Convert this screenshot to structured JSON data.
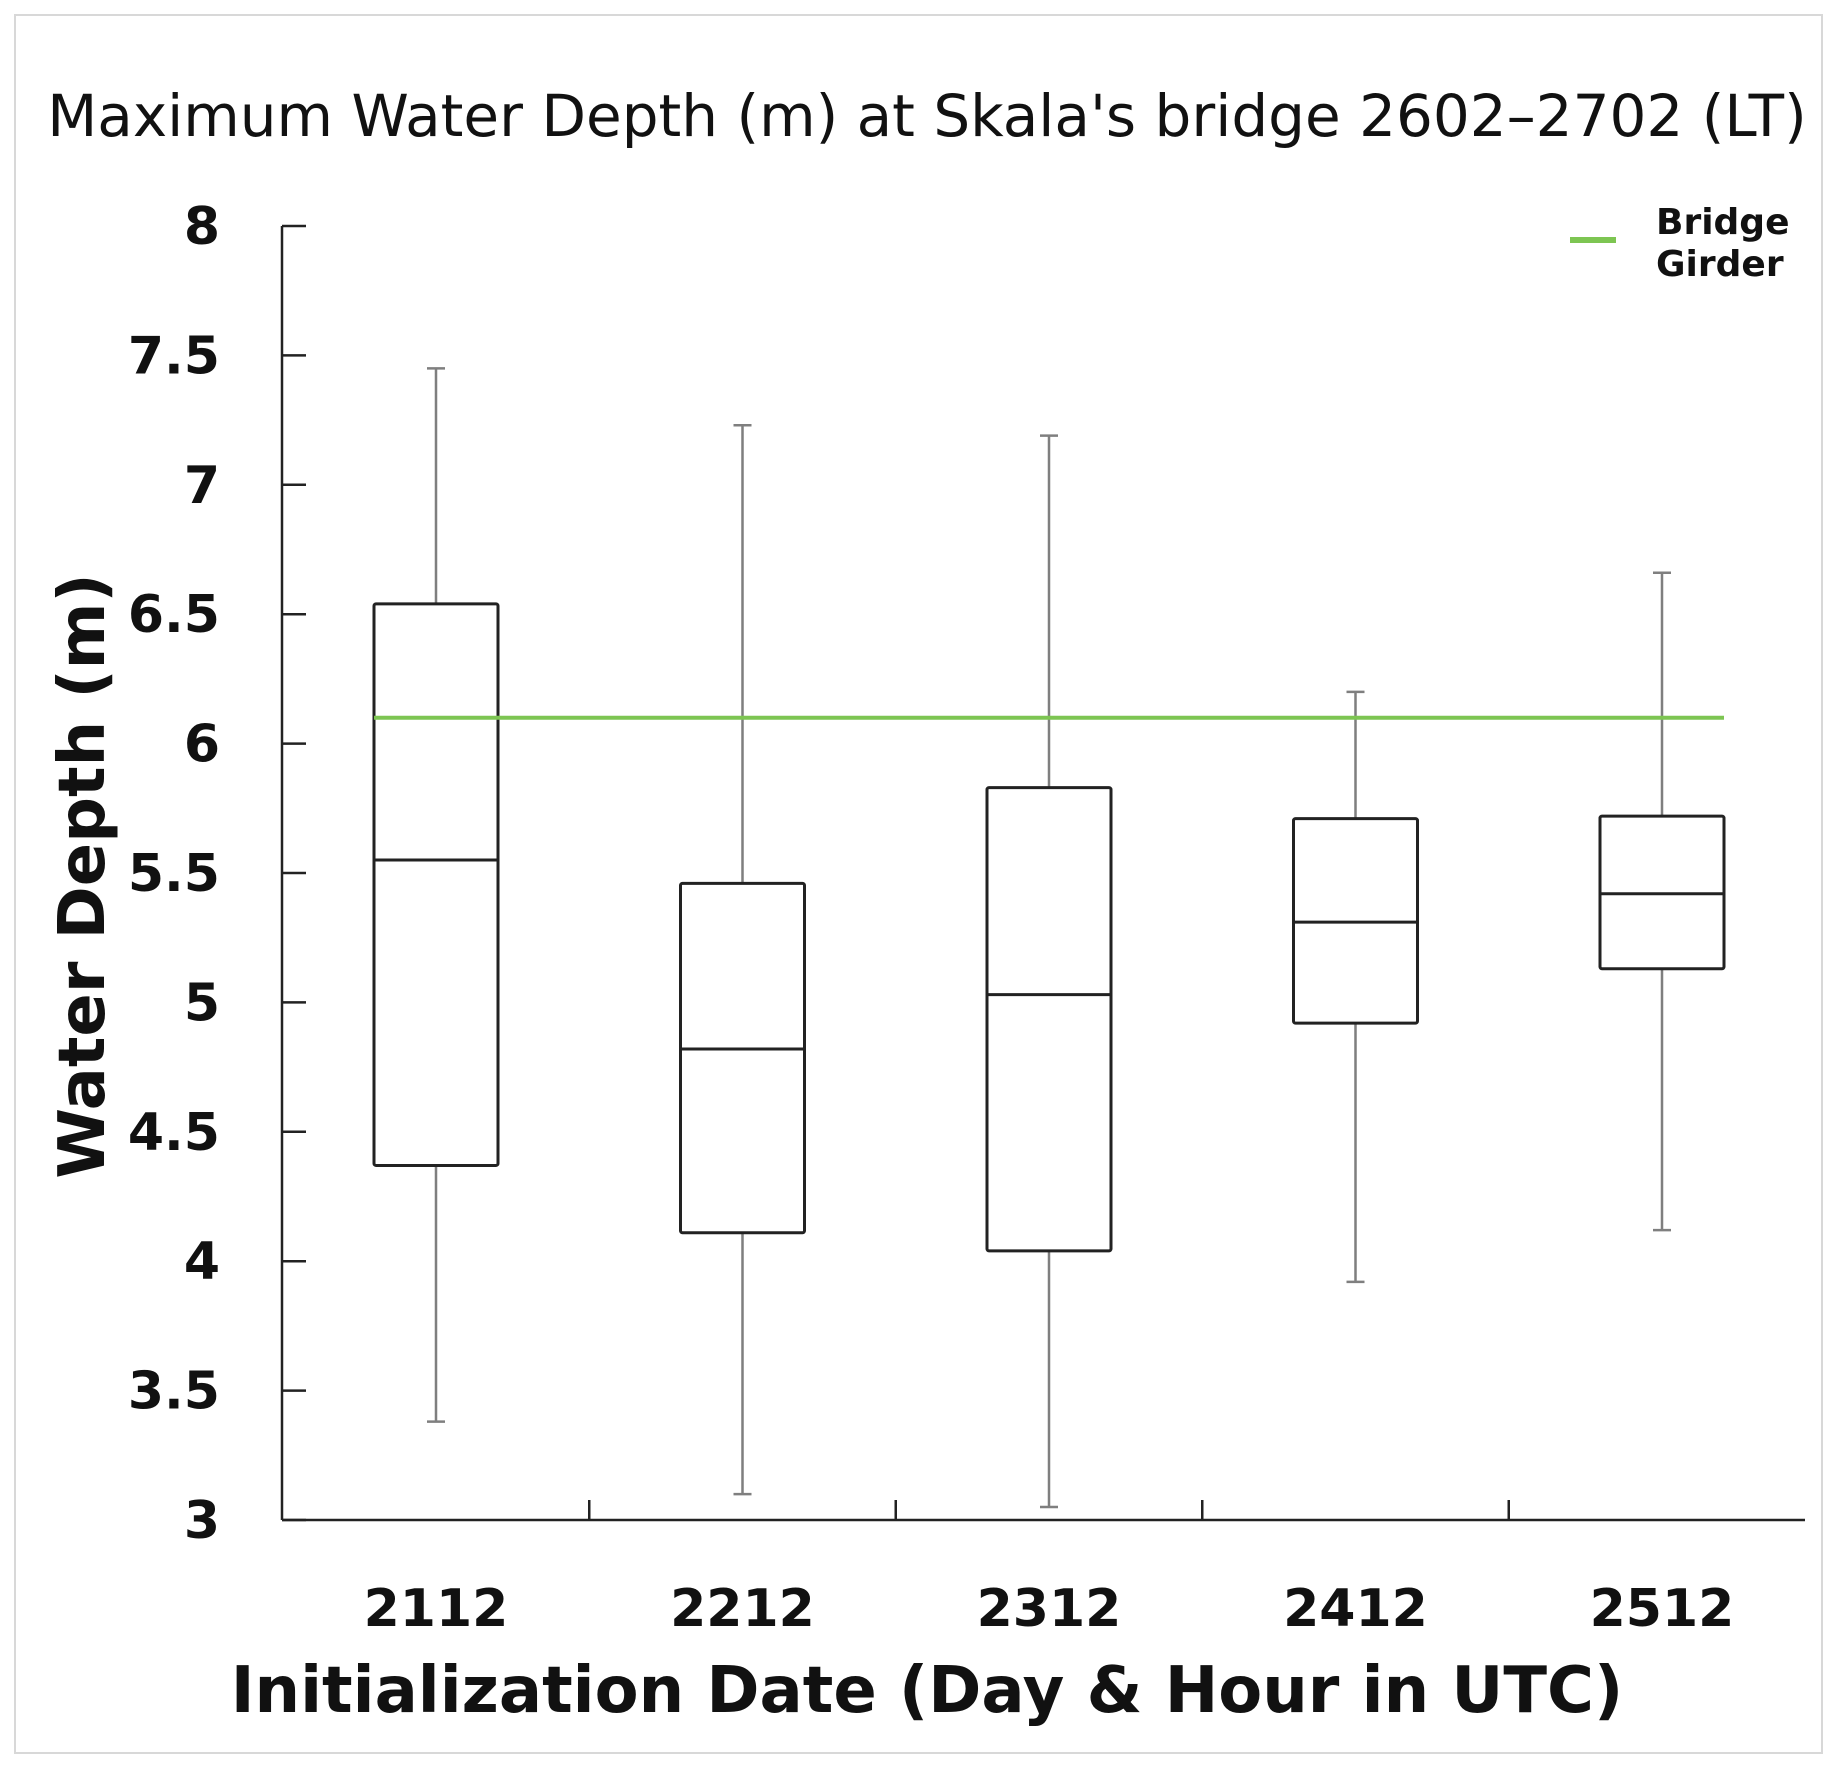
{
  "chart_data": {
    "type": "box",
    "title": "Maximum  Water Depth (m) at Skala's bridge 2602–2702 (LT)",
    "xlabel": "Initialization Date (Day & Hour in UTC)",
    "ylabel": "Water Depth (m)",
    "ylim": [
      3,
      8
    ],
    "yticks": [
      "3",
      "3.5",
      "4",
      "4.5",
      "5",
      "5.5",
      "6",
      "6.5",
      "7",
      "7.5",
      "8"
    ],
    "categories": [
      "2112",
      "2212",
      "2312",
      "2412",
      "2512"
    ],
    "boxes": [
      {
        "min": 3.38,
        "q1": 4.37,
        "median": 5.55,
        "q3": 6.54,
        "max": 7.45
      },
      {
        "min": 3.1,
        "q1": 4.11,
        "median": 4.82,
        "q3": 5.46,
        "max": 7.23
      },
      {
        "min": 3.05,
        "q1": 4.04,
        "median": 5.03,
        "q3": 5.83,
        "max": 7.19
      },
      {
        "min": 3.92,
        "q1": 4.92,
        "median": 5.31,
        "q3": 5.71,
        "max": 6.2
      },
      {
        "min": 4.12,
        "q1": 5.13,
        "median": 5.42,
        "q3": 5.72,
        "max": 6.66
      }
    ],
    "reference_line": {
      "name": "Bridge Girder",
      "value": 6.1,
      "color": "#7dc552"
    },
    "legend": {
      "entries": [
        {
          "label_line1": "Bridge",
          "label_line2": "Girder",
          "color": "#7dc552"
        }
      ],
      "position": "top-right"
    },
    "grid": false,
    "colors": {
      "box": "#222222",
      "whisker": "#7f7f7f",
      "axis": "#222222"
    }
  }
}
